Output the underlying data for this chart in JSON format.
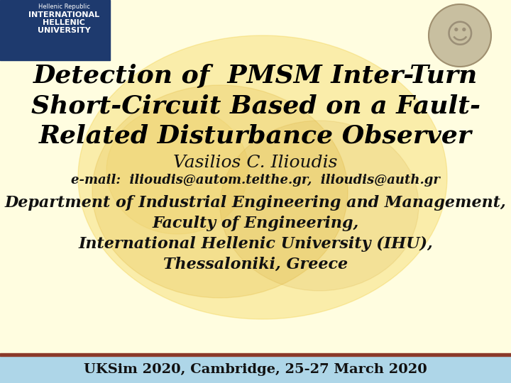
{
  "bg_color": "#FFFDE0",
  "header_bg": "#1E3A6E",
  "footer_bg": "#AED6E8",
  "footer_border_color": "#8B3A2A",
  "title_line1": "Detection of  PMSM Inter-Turn",
  "title_line2": "Short-Circuit Based on a Fault-",
  "title_line3": "Related Disturbance Observer",
  "title_color": "#000000",
  "author": "Vasilios C. Ilioudis",
  "email_text": "e-mail:  ilioudis@autom.teithe.gr,  ilioudis@auth.gr",
  "dept_line1": "Department of Industrial Engineering and Management,",
  "dept_line2": "Faculty of Engineering,",
  "dept_line3": "International Hellenic University (IHU),",
  "dept_line4": "Thessaloniki, Greece",
  "footer_text": "UKSim 2020, Cambridge, 25-27 March 2020",
  "footer_text_color": "#111111",
  "header_small_text": "Hellenic Republic",
  "ihu_line1": "INTERNATIONAL",
  "ihu_line2": "HELLENIC",
  "ihu_line3": "UNIVERSITY",
  "title_fontsize": 26,
  "author_fontsize": 18,
  "email_fontsize": 13,
  "dept_fontsize": 16,
  "footer_fontsize": 14,
  "header_small_fontsize": 6,
  "ihu_fontsize": 8
}
